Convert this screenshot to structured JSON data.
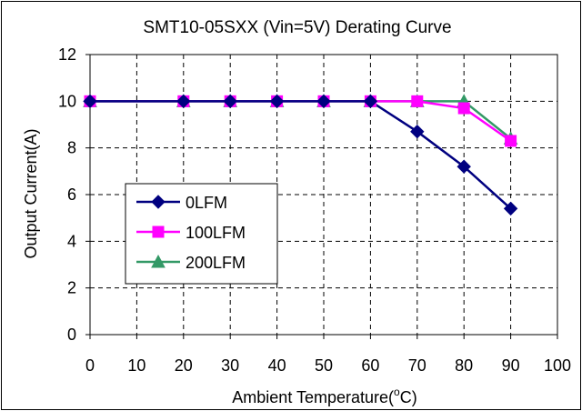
{
  "chart_data": {
    "type": "line",
    "title": "SMT10-05SXX  (Vin=5V) Derating Curve",
    "xlabel": "Ambient Temperature(°C)",
    "ylabel": "Output Current(A)",
    "xlim": [
      0,
      100
    ],
    "ylim": [
      0,
      12
    ],
    "xticks": [
      0,
      10,
      20,
      30,
      40,
      50,
      60,
      70,
      80,
      90,
      100
    ],
    "yticks": [
      0,
      2,
      4,
      6,
      8,
      10,
      12
    ],
    "grid": true,
    "legend_position": "left-center",
    "series": [
      {
        "name": "0LFM",
        "color": "#000080",
        "marker": "diamond",
        "x": [
          0,
          20,
          30,
          40,
          50,
          60,
          70,
          80,
          90
        ],
        "values": [
          10,
          10,
          10,
          10,
          10,
          10,
          8.7,
          7.2,
          5.4
        ]
      },
      {
        "name": "100LFM",
        "color": "#ff00ff",
        "marker": "square",
        "x": [
          0,
          20,
          30,
          40,
          50,
          60,
          70,
          80,
          90
        ],
        "values": [
          10,
          10,
          10,
          10,
          10,
          10,
          10,
          9.7,
          8.3
        ]
      },
      {
        "name": "200LFM",
        "color": "#339966",
        "marker": "triangle",
        "x": [
          0,
          20,
          30,
          40,
          50,
          60,
          70,
          80,
          90
        ],
        "values": [
          10,
          10,
          10,
          10,
          10,
          10,
          10,
          10,
          8.4
        ]
      }
    ]
  }
}
